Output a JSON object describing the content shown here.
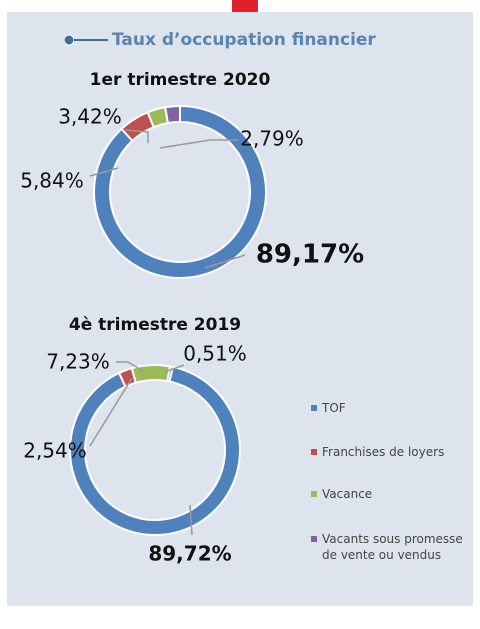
{
  "header": {
    "title": "Taux d’occupation financier"
  },
  "chart_data": [
    {
      "type": "donut",
      "title": "1er trimestre 2020",
      "categories": [
        "TOF",
        "Franchises de loyers",
        "Vacance",
        "Vacants sous promesse de vente ou vendus"
      ],
      "values": [
        89.17,
        5.84,
        3.42,
        2.79
      ],
      "value_labels": [
        "89,17%",
        "5,84%",
        "3,42%",
        "2,79%"
      ],
      "colors": [
        "#4f81bd",
        "#c0504d",
        "#9bbb59",
        "#8064a2"
      ]
    },
    {
      "type": "donut",
      "title": "4è trimestre 2019",
      "categories": [
        "TOF",
        "Franchises de loyers",
        "Vacance",
        "Vacants sous promesse de vente ou vendus"
      ],
      "values": [
        89.72,
        2.54,
        7.23,
        0.51
      ],
      "value_labels": [
        "89,72%",
        "2,54%",
        "7,23%",
        "0,51%"
      ],
      "colors": [
        "#4f81bd",
        "#c0504d",
        "#9bbb59",
        "#8064a2"
      ],
      "legend": "right"
    }
  ]
}
